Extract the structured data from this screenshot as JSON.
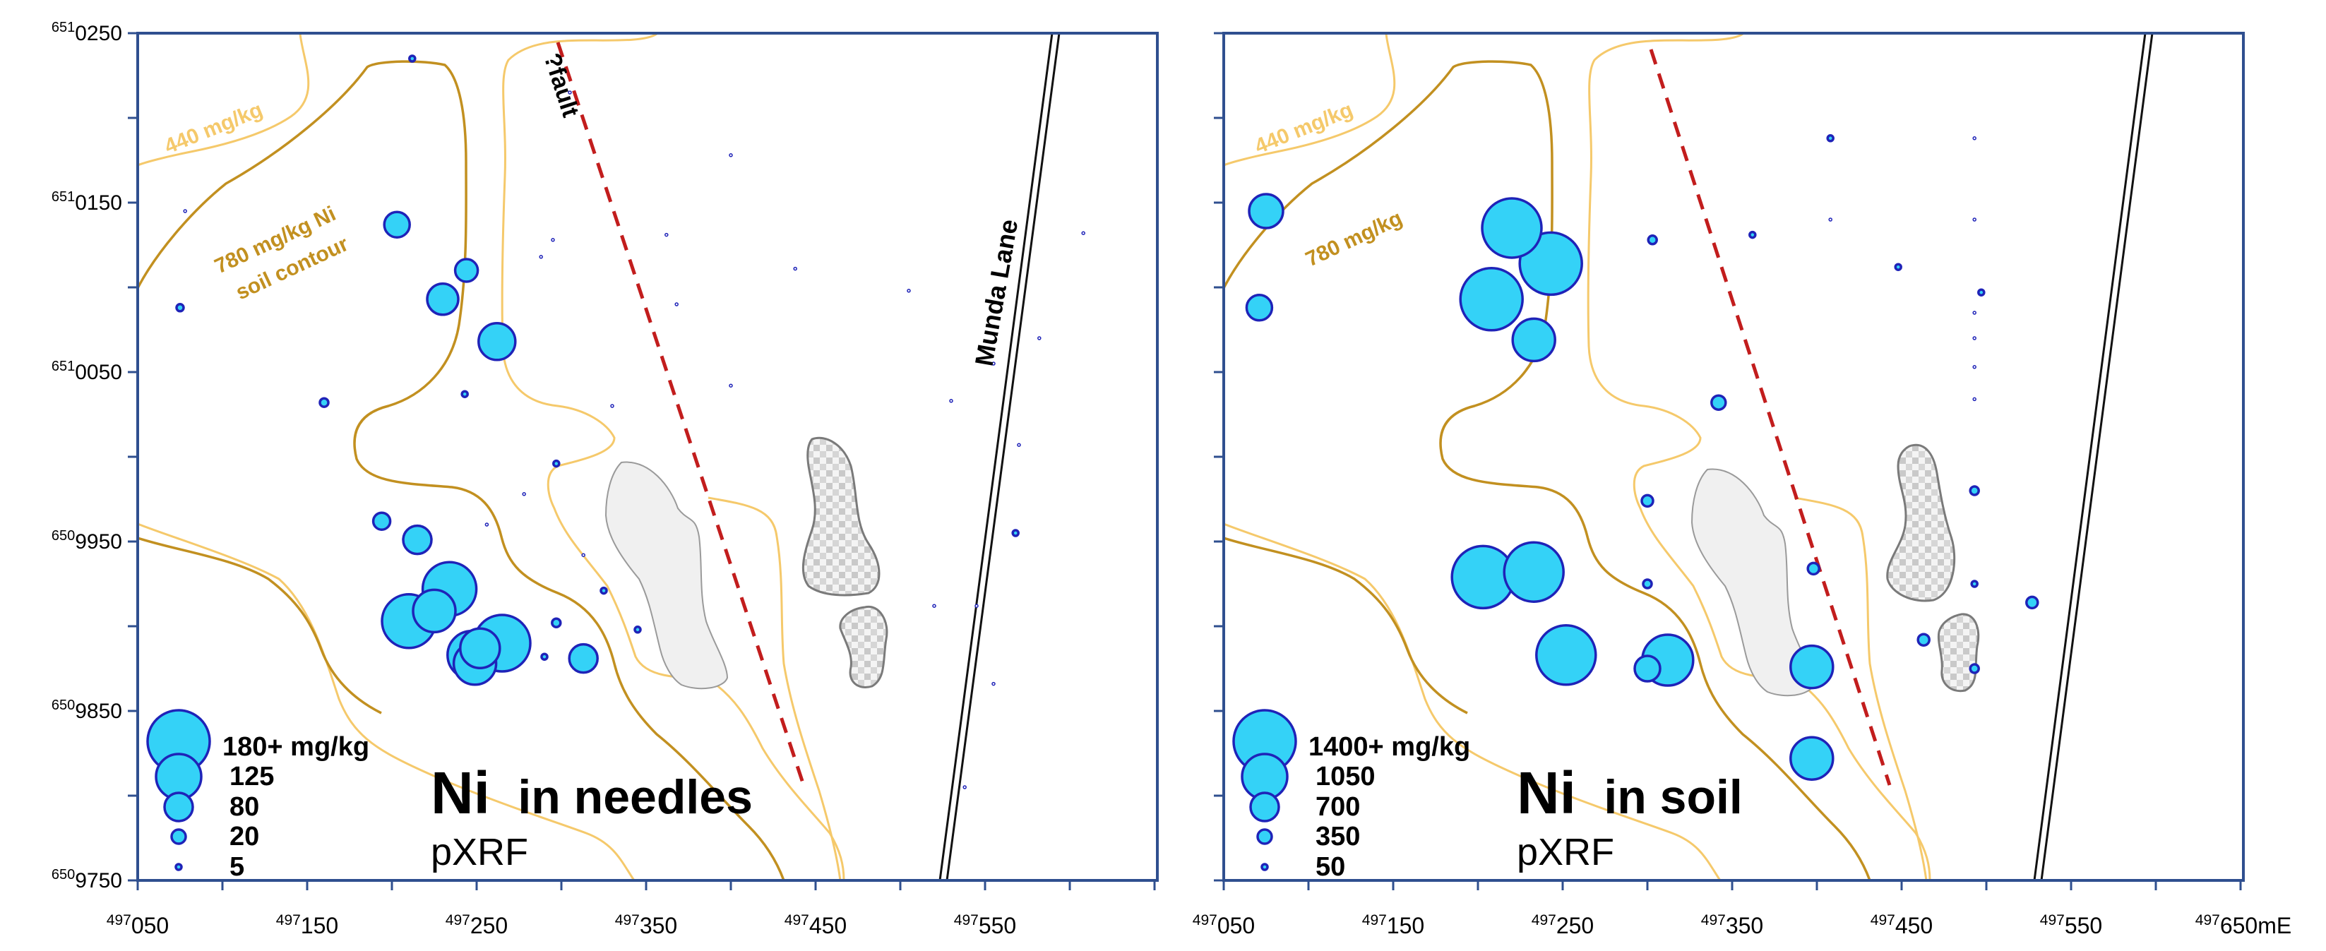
{
  "panels": [
    {
      "id": "needles",
      "title_element": "Ni",
      "title_rest": "in needles",
      "subtitle": "pXRF",
      "contour_labels": [
        "440 mg/kg",
        "780 mg/kg Ni",
        "soil contour"
      ],
      "fault_label": "?fault",
      "road_label": "Munda Lane",
      "legend": [
        {
          "label": "180+ mg/kg",
          "r": 22
        },
        {
          "label": "125",
          "r": 16
        },
        {
          "label": "80",
          "r": 10
        },
        {
          "label": "20",
          "r": 5
        },
        {
          "label": "5",
          "r": 2
        }
      ],
      "samples": [
        {
          "e": 497212,
          "n": 6510235,
          "r": 2
        },
        {
          "e": 497078,
          "n": 6510145,
          "r": 1
        },
        {
          "e": 497075,
          "n": 6510088,
          "r": 2.5
        },
        {
          "e": 497160,
          "n": 6510032,
          "r": 3
        },
        {
          "e": 497203,
          "n": 6510137,
          "r": 9
        },
        {
          "e": 497244,
          "n": 6510110,
          "r": 8
        },
        {
          "e": 497230,
          "n": 6510093,
          "r": 11
        },
        {
          "e": 497262,
          "n": 6510068,
          "r": 13
        },
        {
          "e": 497305,
          "n": 6510215,
          "r": 1
        },
        {
          "e": 497295,
          "n": 6510128,
          "r": 1
        },
        {
          "e": 497288,
          "n": 6510118,
          "r": 1
        },
        {
          "e": 497362,
          "n": 6510131,
          "r": 1
        },
        {
          "e": 497400,
          "n": 6510178,
          "r": 1
        },
        {
          "e": 497368,
          "n": 6510090,
          "r": 1
        },
        {
          "e": 497438,
          "n": 6510111,
          "r": 1
        },
        {
          "e": 497505,
          "n": 6510098,
          "r": 1
        },
        {
          "e": 497555,
          "n": 6510055,
          "r": 1
        },
        {
          "e": 497608,
          "n": 6510132,
          "r": 1
        },
        {
          "e": 497582,
          "n": 6510070,
          "r": 1
        },
        {
          "e": 497530,
          "n": 6510033,
          "r": 1
        },
        {
          "e": 497400,
          "n": 6510042,
          "r": 1
        },
        {
          "e": 497330,
          "n": 6510030,
          "r": 1
        },
        {
          "e": 497243,
          "n": 6510037,
          "r": 2
        },
        {
          "e": 497297,
          "n": 6509996,
          "r": 2
        },
        {
          "e": 497278,
          "n": 6509978,
          "r": 1
        },
        {
          "e": 497256,
          "n": 6509960,
          "r": 1
        },
        {
          "e": 497313,
          "n": 6509942,
          "r": 1
        },
        {
          "e": 497325,
          "n": 6509921,
          "r": 2
        },
        {
          "e": 497345,
          "n": 6509898,
          "r": 2
        },
        {
          "e": 497297,
          "n": 6509902,
          "r": 3
        },
        {
          "e": 497568,
          "n": 6509955,
          "r": 2
        },
        {
          "e": 497570,
          "n": 6510007,
          "r": 1
        },
        {
          "e": 497545,
          "n": 6509912,
          "r": 1
        },
        {
          "e": 497520,
          "n": 6509912,
          "r": 1
        },
        {
          "e": 497555,
          "n": 6509866,
          "r": 1
        },
        {
          "e": 497538,
          "n": 6509805,
          "r": 1
        },
        {
          "e": 497194,
          "n": 6509962,
          "r": 6
        },
        {
          "e": 497215,
          "n": 6509951,
          "r": 10
        },
        {
          "e": 497234,
          "n": 6509922,
          "r": 19
        },
        {
          "e": 497225,
          "n": 6509909,
          "r": 15
        },
        {
          "e": 497210,
          "n": 6509903,
          "r": 19
        },
        {
          "e": 497247,
          "n": 6509883,
          "r": 17
        },
        {
          "e": 497249,
          "n": 6509878,
          "r": 15
        },
        {
          "e": 497252,
          "n": 6509887,
          "r": 14
        },
        {
          "e": 497265,
          "n": 6509890,
          "r": 20
        },
        {
          "e": 497290,
          "n": 6509882,
          "r": 2
        },
        {
          "e": 497313,
          "n": 6509881,
          "r": 10
        }
      ]
    },
    {
      "id": "soil",
      "title_element": "Ni",
      "title_rest": "in soil",
      "subtitle": "pXRF",
      "contour_labels": [
        "440 mg/kg",
        "780 mg/kg"
      ],
      "legend": [
        {
          "label": "1400+ mg/kg",
          "r": 22
        },
        {
          "label": "1050",
          "r": 16
        },
        {
          "label": "700",
          "r": 10
        },
        {
          "label": "350",
          "r": 5
        },
        {
          "label": "50",
          "r": 2
        }
      ],
      "samples": [
        {
          "e": 497075,
          "n": 6510145,
          "r": 12
        },
        {
          "e": 497071,
          "n": 6510088,
          "r": 9
        },
        {
          "e": 497220,
          "n": 6510135,
          "r": 21
        },
        {
          "e": 497243,
          "n": 6510114,
          "r": 22
        },
        {
          "e": 497208,
          "n": 6510093,
          "r": 22
        },
        {
          "e": 497233,
          "n": 6510069,
          "r": 15
        },
        {
          "e": 497303,
          "n": 6510128,
          "r": 3
        },
        {
          "e": 497362,
          "n": 6510131,
          "r": 2
        },
        {
          "e": 497408,
          "n": 6510188,
          "r": 2
        },
        {
          "e": 497408,
          "n": 6510140,
          "r": 1
        },
        {
          "e": 497448,
          "n": 6510112,
          "r": 2
        },
        {
          "e": 497493,
          "n": 6510188,
          "r": 1
        },
        {
          "e": 497493,
          "n": 6510140,
          "r": 1
        },
        {
          "e": 497497,
          "n": 6510097,
          "r": 2
        },
        {
          "e": 497493,
          "n": 6510085,
          "r": 1
        },
        {
          "e": 497493,
          "n": 6510070,
          "r": 1
        },
        {
          "e": 497493,
          "n": 6510053,
          "r": 1
        },
        {
          "e": 497493,
          "n": 6510034,
          "r": 1
        },
        {
          "e": 497342,
          "n": 6510032,
          "r": 5
        },
        {
          "e": 497493,
          "n": 6509980,
          "r": 3
        },
        {
          "e": 497300,
          "n": 6509974,
          "r": 4
        },
        {
          "e": 497300,
          "n": 6509925,
          "r": 3
        },
        {
          "e": 497493,
          "n": 6509925,
          "r": 2
        },
        {
          "e": 497203,
          "n": 6509929,
          "r": 22
        },
        {
          "e": 497233,
          "n": 6509932,
          "r": 21
        },
        {
          "e": 497252,
          "n": 6509883,
          "r": 21
        },
        {
          "e": 497312,
          "n": 6509880,
          "r": 18
        },
        {
          "e": 497300,
          "n": 6509875,
          "r": 9
        },
        {
          "e": 497398,
          "n": 6509934,
          "r": 4
        },
        {
          "e": 497397,
          "n": 6509876,
          "r": 15
        },
        {
          "e": 497397,
          "n": 6509822,
          "r": 15
        },
        {
          "e": 497463,
          "n": 6509892,
          "r": 4
        },
        {
          "e": 497493,
          "n": 6509875,
          "r": 3
        },
        {
          "e": 497527,
          "n": 6509914,
          "r": 4
        }
      ]
    }
  ],
  "easting_ticks": [
    {
      "sup": "497",
      "val": "050",
      "e": 497050
    },
    {
      "sup": "497",
      "val": "150",
      "e": 497150
    },
    {
      "sup": "497",
      "val": "250",
      "e": 497250
    },
    {
      "sup": "497",
      "val": "350",
      "e": 497350
    },
    {
      "sup": "497",
      "val": "450",
      "e": 497450
    },
    {
      "sup": "497",
      "val": "550",
      "e": 497550
    },
    {
      "sup": "497",
      "val": "650mE",
      "e": 497650
    }
  ],
  "northing_ticks": [
    {
      "sup": "651",
      "val": "0250",
      "n": 6510250
    },
    {
      "sup": "651",
      "val": "0150",
      "n": 6510150
    },
    {
      "sup": "651",
      "val": "0050",
      "n": 6510050
    },
    {
      "sup": "650",
      "val": "9950",
      "n": 6509950
    },
    {
      "sup": "650",
      "val": "9850",
      "n": 6509850
    },
    {
      "sup": "650",
      "val": "9750",
      "n": 6509750
    }
  ],
  "colors": {
    "frame": "#2f4f8f",
    "symbol_fill": "#34d2f7",
    "symbol_stroke": "#1f23b8",
    "contour_440": "#f5c96b",
    "contour_780": "#c29020",
    "fault": "#c21d1d",
    "road": "#111111"
  }
}
